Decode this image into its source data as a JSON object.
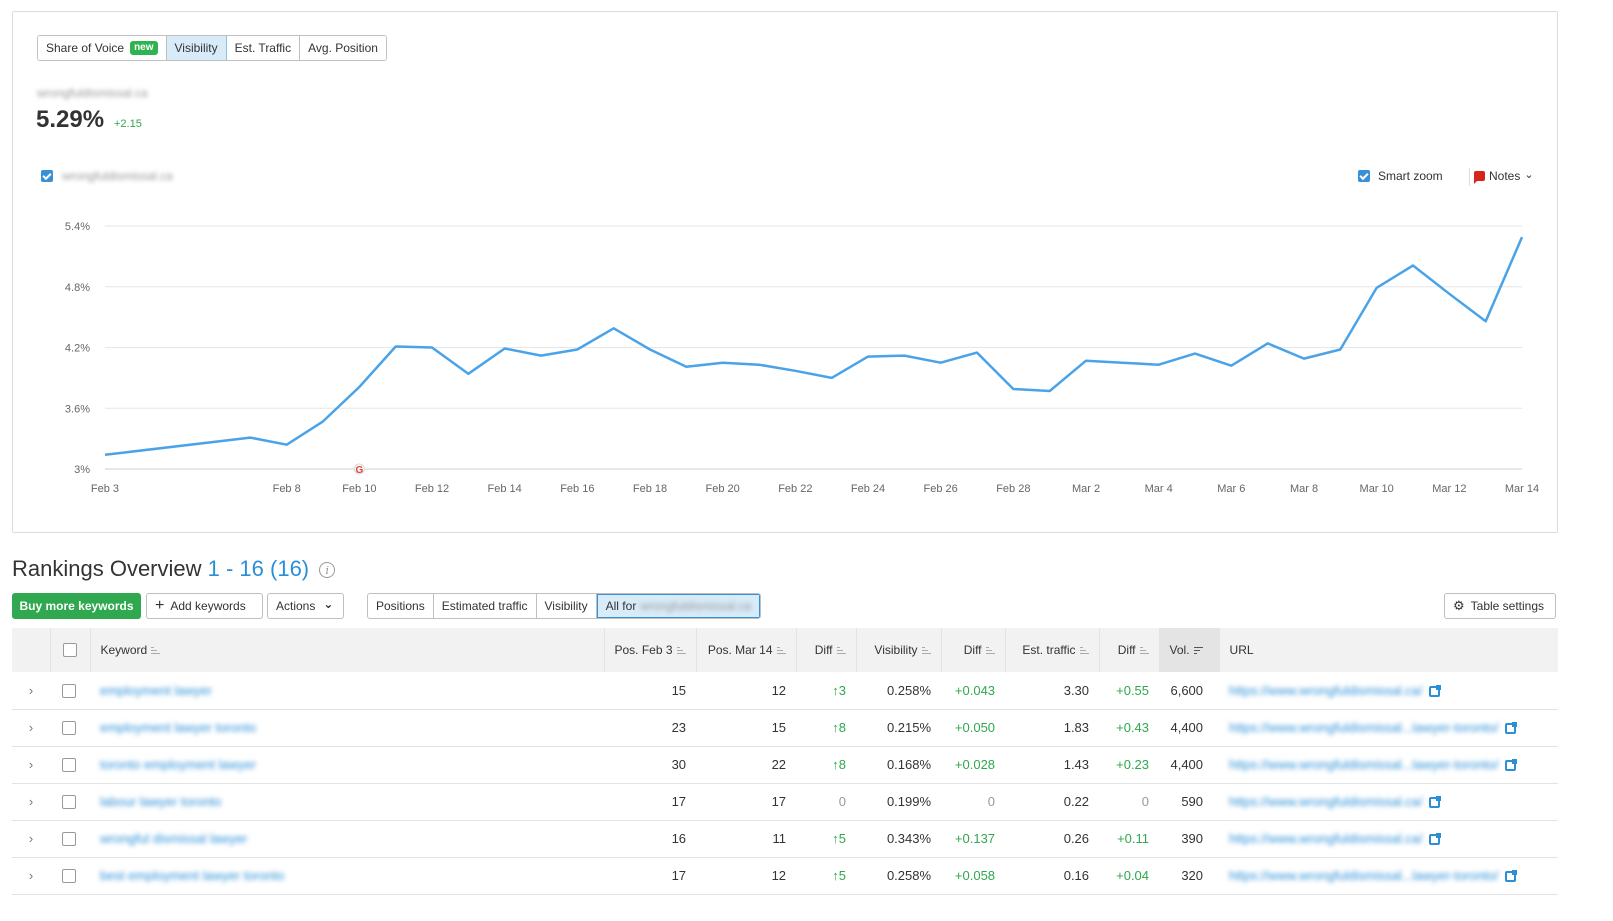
{
  "metric_tabs": {
    "share_of_voice": "Share of Voice",
    "new_badge": "new",
    "visibility": "Visibility",
    "est_traffic": "Est. Traffic",
    "avg_position": "Avg. Position",
    "active": "Visibility"
  },
  "summary": {
    "domain": "wrongfuldismissal.ca",
    "value": "5.29%",
    "diff": "+2.15"
  },
  "legend": {
    "series_label": "wrongfuldismissal.ca",
    "smart_zoom": "Smart zoom",
    "notes": "Notes",
    "notes_chevron": "⌄"
  },
  "chart_data": {
    "type": "line",
    "ylim": [
      3,
      5.4
    ],
    "yticks": [
      "3%",
      "3.6%",
      "4.2%",
      "4.8%",
      "5.4%"
    ],
    "ytick_values": [
      3,
      3.6,
      4.2,
      4.8,
      5.4
    ],
    "xtick_labels": [
      "Feb 3",
      "Feb 8",
      "Feb 10",
      "Feb 12",
      "Feb 14",
      "Feb 16",
      "Feb 18",
      "Feb 20",
      "Feb 22",
      "Feb 24",
      "Feb 26",
      "Feb 28",
      "Mar 2",
      "Mar 4",
      "Mar 6",
      "Mar 8",
      "Mar 10",
      "Mar 12",
      "Mar 14"
    ],
    "xtick_days": [
      0,
      5,
      7,
      9,
      11,
      13,
      15,
      17,
      19,
      21,
      23,
      25,
      27,
      29,
      31,
      33,
      35,
      37,
      39
    ],
    "series": [
      {
        "name": "wrongfuldismissal.ca",
        "color": "#4aa3e8",
        "points": [
          [
            0,
            3.14
          ],
          [
            4,
            3.31
          ],
          [
            5,
            3.24
          ],
          [
            6,
            3.47
          ],
          [
            7,
            3.81
          ],
          [
            8,
            4.21
          ],
          [
            9,
            4.2
          ],
          [
            10,
            3.94
          ],
          [
            11,
            4.19
          ],
          [
            12,
            4.12
          ],
          [
            13,
            4.18
          ],
          [
            14,
            4.39
          ],
          [
            15,
            4.18
          ],
          [
            16,
            4.01
          ],
          [
            17,
            4.05
          ],
          [
            18,
            4.03
          ],
          [
            19,
            3.97
          ],
          [
            20,
            3.9
          ],
          [
            21,
            4.11
          ],
          [
            22,
            4.12
          ],
          [
            23,
            4.05
          ],
          [
            24,
            4.15
          ],
          [
            25,
            3.79
          ],
          [
            26,
            3.77
          ],
          [
            27,
            4.07
          ],
          [
            28,
            4.05
          ],
          [
            29,
            4.03
          ],
          [
            30,
            4.14
          ],
          [
            31,
            4.02
          ],
          [
            32,
            4.24
          ],
          [
            33,
            4.09
          ],
          [
            34,
            4.18
          ],
          [
            35,
            4.79
          ],
          [
            36,
            5.01
          ],
          [
            37,
            4.73
          ],
          [
            38,
            4.46
          ],
          [
            39,
            5.29
          ]
        ]
      }
    ],
    "annotation": {
      "day": 7,
      "label": "G"
    },
    "grid": true
  },
  "rankings": {
    "title": "Rankings Overview",
    "range": "1 - 16 (16)",
    "info": "i",
    "buy_more": "Buy more keywords",
    "add_keywords": "Add keywords",
    "add_icon": "+",
    "actions": "Actions",
    "actions_chevron": "⌄",
    "filters": [
      "Positions",
      "Estimated traffic",
      "Visibility"
    ],
    "filter_all_prefix": "All for",
    "filter_all_domain": "wrongfuldismissal.ca",
    "table_settings": "Table settings",
    "gear": "⚙",
    "columns": {
      "keyword": "Keyword",
      "pos_start": "Pos. Feb 3",
      "pos_end": "Pos. Mar 14",
      "diff": "Diff",
      "visibility": "Visibility",
      "vis_diff": "Diff",
      "est_traffic": "Est. traffic",
      "traffic_diff": "Diff",
      "volume": "Vol.",
      "url": "URL"
    },
    "rows": [
      {
        "keyword": "employment lawyer",
        "pos_start": "15",
        "pos_end": "12",
        "diff": "3",
        "visibility": "0.258%",
        "vis_diff": "+0.043",
        "traffic": "3.30",
        "traffic_diff": "+0.55",
        "volume": "6,600",
        "url": "https://www.wrongfuldismissal.ca/"
      },
      {
        "keyword": "employment lawyer toronto",
        "pos_start": "23",
        "pos_end": "15",
        "diff": "8",
        "visibility": "0.215%",
        "vis_diff": "+0.050",
        "traffic": "1.83",
        "traffic_diff": "+0.43",
        "volume": "4,400",
        "url": "https://www.wrongfuldismissal...lawyer-toronto/"
      },
      {
        "keyword": "toronto employment lawyer",
        "pos_start": "30",
        "pos_end": "22",
        "diff": "8",
        "visibility": "0.168%",
        "vis_diff": "+0.028",
        "traffic": "1.43",
        "traffic_diff": "+0.23",
        "volume": "4,400",
        "url": "https://www.wrongfuldismissal...lawyer-toronto/"
      },
      {
        "keyword": "labour lawyer toronto",
        "pos_start": "17",
        "pos_end": "17",
        "diff": "0",
        "visibility": "0.199%",
        "vis_diff": "0",
        "traffic": "0.22",
        "traffic_diff": "0",
        "volume": "590",
        "url": "https://www.wrongfuldismissal.ca/"
      },
      {
        "keyword": "wrongful dismissal lawyer",
        "pos_start": "16",
        "pos_end": "11",
        "diff": "5",
        "visibility": "0.343%",
        "vis_diff": "+0.137",
        "traffic": "0.26",
        "traffic_diff": "+0.11",
        "volume": "390",
        "url": "https://www.wrongfuldismissal.ca/"
      },
      {
        "keyword": "best employment lawyer toronto",
        "pos_start": "17",
        "pos_end": "12",
        "diff": "5",
        "visibility": "0.258%",
        "vis_diff": "+0.058",
        "traffic": "0.16",
        "traffic_diff": "+0.04",
        "volume": "320",
        "url": "https://www.wrongfuldismissal...lawyer-toronto/"
      }
    ]
  }
}
